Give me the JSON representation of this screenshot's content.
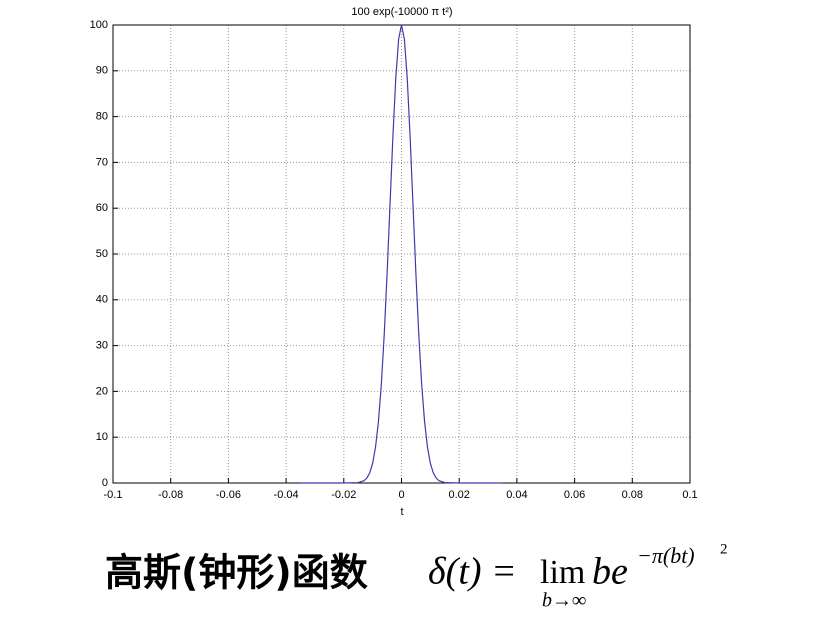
{
  "chart_data": {
    "type": "line",
    "title": "100 exp(-10000 π t²)",
    "x_label": "t",
    "x": [
      -0.035,
      -0.02,
      -0.015,
      -0.013,
      -0.012,
      -0.011,
      -0.01,
      -0.009,
      -0.008,
      -0.007,
      -0.006,
      -0.005,
      -0.004,
      -0.003,
      -0.002,
      -0.001,
      0,
      0.001,
      0.002,
      0.003,
      0.004,
      0.005,
      0.006,
      0.007,
      0.008,
      0.009,
      0.01,
      0.011,
      0.012,
      0.013,
      0.015,
      0.02,
      0.035
    ],
    "series": [
      {
        "color": "#3b3bb0",
        "values": [
          0,
          0,
          0.09,
          0.49,
          1.08,
          2.23,
          4.32,
          7.85,
          13.39,
          21.45,
          32.27,
          45.59,
          60.49,
          75.37,
          88.19,
          96.91,
          100,
          96.91,
          88.19,
          75.37,
          60.49,
          45.59,
          32.27,
          21.45,
          13.39,
          7.85,
          4.32,
          2.23,
          1.08,
          0.49,
          0.09,
          0,
          0
        ]
      }
    ],
    "xlim": [
      -0.1,
      0.1
    ],
    "xticks": [
      -0.1,
      -0.08,
      -0.06,
      -0.04,
      -0.02,
      0,
      0.02,
      0.04,
      0.06,
      0.08,
      0.1
    ],
    "ylim": [
      0,
      100
    ],
    "yticks": [
      0,
      10,
      20,
      30,
      40,
      50,
      60,
      70,
      80,
      90,
      100
    ],
    "grid": true
  },
  "caption": {
    "name": "高斯(钟形)函数",
    "formula_lhs": "δ(t) =",
    "formula_lim": "lim",
    "formula_limit": "b→∞",
    "formula_base": "be",
    "formula_exponent": "−π(bt)",
    "formula_exponent_power": "2"
  }
}
